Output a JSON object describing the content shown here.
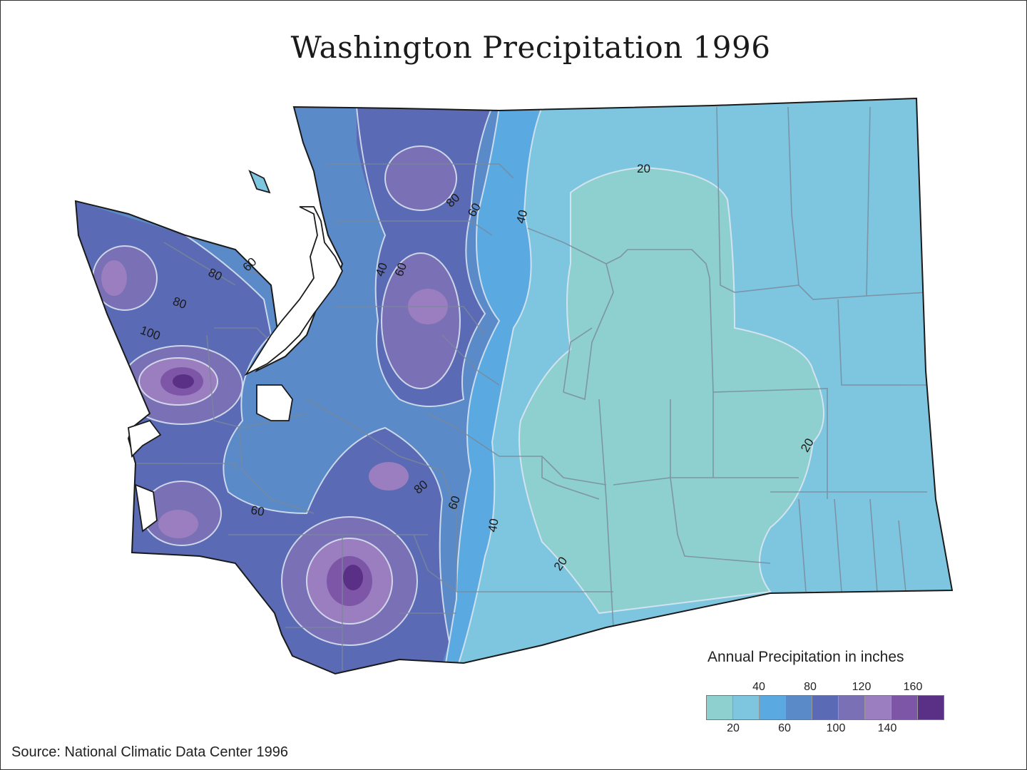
{
  "title": "Washington Precipitation 1996",
  "legend": {
    "title": "Annual Precipitation in inches",
    "swatch_colors": [
      "#8ecfcf",
      "#7ec6e0",
      "#5aa9e0",
      "#5b8ac8",
      "#5a6ab4",
      "#7a70b5",
      "#9a7ec0",
      "#7e56a8",
      "#5a2f86"
    ],
    "top_ticks": [
      "40",
      "80",
      "120",
      "160"
    ],
    "bottom_ticks": [
      "20",
      "60",
      "100",
      "140"
    ]
  },
  "contour_labels": [
    "20",
    "40",
    "60",
    "80",
    "60",
    "40",
    "60",
    "80",
    "100",
    "80",
    "60",
    "40",
    "20",
    "20",
    "60",
    "80",
    "60",
    "40",
    "20"
  ],
  "source": "Source: National Climatic Data Center 1996"
}
